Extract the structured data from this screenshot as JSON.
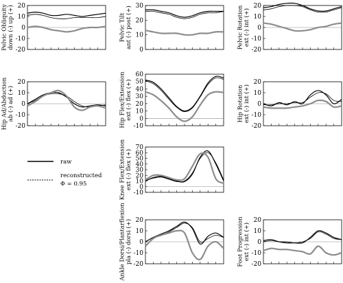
{
  "legend": {
    "raw_label": "raw",
    "recon_line1": "reconstructed",
    "recon_line2": "Φ = 0.95"
  },
  "colors": {
    "raw": "#000000",
    "reconstructed": "#000000",
    "third": "#8c8c8c",
    "zero": "#888888"
  },
  "chart_data": [
    {
      "id": "pelvic-obliquity",
      "type": "line",
      "ylabel": [
        "Pelvic Obliquity",
        "down (-)  up (+)"
      ],
      "ylim": [
        -20,
        20
      ],
      "yticks": [
        -20,
        -10,
        0,
        10,
        20
      ],
      "x": [
        0,
        10,
        20,
        30,
        40,
        50,
        60,
        70,
        80,
        90,
        100
      ],
      "series": [
        {
          "name": "raw",
          "values": [
            13,
            14,
            13,
            11,
            11,
            12,
            11,
            10,
            11,
            12,
            13
          ]
        },
        {
          "name": "reconstructed",
          "values": [
            11,
            12,
            11,
            9,
            8,
            8,
            9,
            9,
            9,
            9,
            10
          ]
        },
        {
          "values": [
            0,
            1,
            0,
            -2,
            -3,
            -4,
            -3,
            -1,
            0,
            0,
            1
          ]
        }
      ]
    },
    {
      "id": "pelvic-tilt",
      "type": "line",
      "ylabel": [
        "Pelvic Tilt",
        "ant (-)  post (+)"
      ],
      "ylim": [
        0,
        30
      ],
      "yticks": [
        0,
        10,
        20,
        30
      ],
      "x": [
        0,
        10,
        20,
        30,
        40,
        50,
        60,
        70,
        80,
        90,
        100
      ],
      "series": [
        {
          "name": "raw",
          "values": [
            27,
            27,
            26,
            25,
            23,
            22,
            23,
            25,
            26,
            26,
            26
          ]
        },
        {
          "name": "reconstructed",
          "values": [
            26,
            26,
            25,
            24,
            22,
            21,
            22,
            24,
            25,
            25,
            26
          ]
        },
        {
          "values": [
            13,
            12,
            11,
            11,
            11,
            10,
            10,
            11,
            11,
            12,
            12
          ]
        }
      ]
    },
    {
      "id": "pelvic-rotation",
      "type": "line",
      "ylabel": [
        "Pelvic Rotation",
        "ext (-)  int (+)"
      ],
      "ylim": [
        -20,
        20
      ],
      "yticks": [
        -20,
        -10,
        0,
        10,
        20
      ],
      "x": [
        0,
        10,
        20,
        30,
        40,
        50,
        60,
        70,
        80,
        90,
        100
      ],
      "series": [
        {
          "name": "raw",
          "values": [
            18,
            19,
            21,
            22,
            22,
            20,
            17,
            15,
            15,
            17,
            19
          ]
        },
        {
          "name": "reconstructed",
          "values": [
            16,
            17,
            19,
            20,
            20,
            19,
            16,
            14,
            14,
            16,
            18
          ]
        },
        {
          "values": [
            4,
            3,
            1,
            -1,
            -3,
            -3,
            -2,
            0,
            1,
            3,
            4
          ]
        }
      ]
    },
    {
      "id": "hip-adduction",
      "type": "line",
      "ylabel": [
        "Hip Ad/Abduction",
        "ab (-)  ad (+)"
      ],
      "ylim": [
        -20,
        20
      ],
      "yticks": [
        -20,
        -10,
        0,
        10,
        20
      ],
      "x": [
        0,
        10,
        20,
        30,
        40,
        50,
        60,
        70,
        80,
        90,
        100
      ],
      "series": [
        {
          "name": "raw",
          "values": [
            0,
            4,
            8,
            10,
            10,
            6,
            0,
            -3,
            -2,
            -1,
            -2
          ]
        },
        {
          "name": "reconstructed",
          "values": [
            0,
            3,
            7,
            9,
            9,
            7,
            2,
            -2,
            -3,
            -2,
            -1
          ]
        },
        {
          "values": [
            -2,
            2,
            7,
            10,
            12,
            7,
            -3,
            -6,
            -3,
            -2,
            -4
          ]
        }
      ]
    },
    {
      "id": "hip-flexion",
      "type": "line",
      "ylabel": [
        "Hip Flex/Extension",
        "ext (-)  flex (+)"
      ],
      "ylim": [
        -10,
        60
      ],
      "yticks": [
        -10,
        0,
        10,
        20,
        30,
        40,
        50,
        60
      ],
      "x": [
        0,
        10,
        20,
        30,
        40,
        50,
        60,
        70,
        80,
        90,
        100
      ],
      "series": [
        {
          "name": "raw",
          "values": [
            52,
            49,
            40,
            28,
            16,
            10,
            15,
            30,
            48,
            57,
            55
          ]
        },
        {
          "name": "reconstructed",
          "values": [
            51,
            47,
            38,
            26,
            15,
            9,
            14,
            29,
            46,
            55,
            53
          ]
        },
        {
          "values": [
            36,
            32,
            24,
            14,
            2,
            -4,
            2,
            18,
            32,
            36,
            35
          ]
        }
      ]
    },
    {
      "id": "hip-rotation",
      "type": "line",
      "ylabel": [
        "Hip Rotation",
        "ext (-)  int (+)"
      ],
      "ylim": [
        -20,
        20
      ],
      "yticks": [
        -20,
        -10,
        0,
        10,
        20
      ],
      "x": [
        0,
        10,
        20,
        30,
        40,
        50,
        60,
        70,
        80,
        90,
        100
      ],
      "series": [
        {
          "name": "raw",
          "values": [
            0,
            -2,
            1,
            -1,
            2,
            0,
            8,
            12,
            8,
            0,
            4
          ]
        },
        {
          "name": "reconstructed",
          "values": [
            -1,
            -1,
            0,
            0,
            1,
            1,
            6,
            10,
            9,
            3,
            2
          ]
        },
        {
          "values": [
            -3,
            -4,
            -4,
            -4,
            -3,
            -2,
            0,
            3,
            2,
            -3,
            -2
          ]
        }
      ]
    },
    {
      "id": "knee-flexion",
      "type": "line",
      "ylabel": [
        "Knee Flex/Extension",
        "ext (-)  flex (+)"
      ],
      "ylim": [
        -10,
        70
      ],
      "yticks": [
        -10,
        0,
        10,
        20,
        30,
        40,
        50,
        60,
        70
      ],
      "x": [
        0,
        10,
        20,
        30,
        40,
        50,
        60,
        70,
        80,
        90,
        100
      ],
      "series": [
        {
          "name": "raw",
          "values": [
            10,
            16,
            18,
            14,
            10,
            9,
            22,
            52,
            63,
            40,
            10
          ]
        },
        {
          "name": "reconstructed",
          "values": [
            11,
            15,
            17,
            13,
            9,
            10,
            24,
            50,
            60,
            42,
            12
          ]
        },
        {
          "values": [
            12,
            20,
            20,
            16,
            12,
            14,
            36,
            58,
            52,
            14,
            6
          ]
        }
      ]
    },
    {
      "id": "ankle-dorsiflexion",
      "type": "line",
      "ylabel": [
        "Ankle Dorsi/Plantarflexion",
        "pla (-)  dorsi (+)"
      ],
      "ylim": [
        -20,
        20
      ],
      "yticks": [
        -20,
        -10,
        0,
        10,
        20
      ],
      "x": [
        0,
        10,
        20,
        30,
        40,
        50,
        60,
        70,
        80,
        90,
        100
      ],
      "series": [
        {
          "name": "raw",
          "values": [
            0,
            4,
            7,
            10,
            14,
            18,
            12,
            -2,
            5,
            8,
            4
          ]
        },
        {
          "name": "reconstructed",
          "values": [
            0,
            4,
            6,
            9,
            13,
            17,
            13,
            0,
            3,
            6,
            4
          ]
        },
        {
          "values": [
            -4,
            3,
            6,
            8,
            10,
            8,
            -10,
            -16,
            -4,
            0,
            -6
          ]
        }
      ]
    },
    {
      "id": "foot-progression",
      "type": "line",
      "ylabel": [
        "Foot Progression",
        "ext (-)  int (+)"
      ],
      "ylim": [
        -20,
        20
      ],
      "yticks": [
        -20,
        -10,
        0,
        10,
        20
      ],
      "x": [
        0,
        10,
        20,
        30,
        40,
        50,
        60,
        70,
        80,
        90,
        100
      ],
      "series": [
        {
          "name": "raw",
          "values": [
            1,
            2,
            0,
            -1,
            -1,
            -1,
            4,
            10,
            8,
            4,
            2
          ]
        },
        {
          "name": "reconstructed",
          "values": [
            0,
            1,
            0,
            0,
            -1,
            0,
            3,
            9,
            7,
            3,
            2
          ]
        },
        {
          "values": [
            -8,
            -6,
            -7,
            -7,
            -8,
            -9,
            -11,
            -4,
            -10,
            -12,
            -10
          ]
        }
      ]
    }
  ]
}
